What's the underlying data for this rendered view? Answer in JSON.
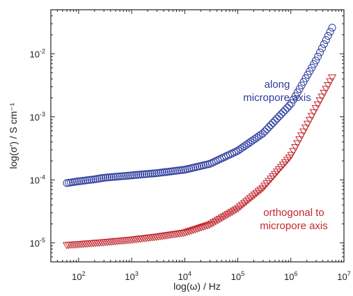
{
  "chart_data": {
    "type": "scatter",
    "title": "",
    "xlabel": "log(ω) / Hz",
    "ylabel": "log(σ') / S cm⁻¹",
    "x_scale": "log",
    "y_scale": "log",
    "xlim": [
      30,
      10000000
    ],
    "ylim": [
      5e-06,
      0.05
    ],
    "grid": false,
    "x_ticks": [
      {
        "value": 100,
        "base": "10",
        "exp": "2"
      },
      {
        "value": 1000,
        "base": "10",
        "exp": "3"
      },
      {
        "value": 10000,
        "base": "10",
        "exp": "4"
      },
      {
        "value": 100000,
        "base": "10",
        "exp": "5"
      },
      {
        "value": 1000000,
        "base": "10",
        "exp": "6"
      },
      {
        "value": 10000000,
        "base": "10",
        "exp": "7"
      }
    ],
    "y_ticks": [
      {
        "value": 1e-05,
        "base": "10",
        "exp": "-5"
      },
      {
        "value": 0.0001,
        "base": "10",
        "exp": "-4"
      },
      {
        "value": 0.001,
        "base": "10",
        "exp": "-3"
      },
      {
        "value": 0.01,
        "base": "10",
        "exp": "-2"
      }
    ],
    "series": [
      {
        "name": "along micropore axis",
        "color": "#2b3a9c",
        "marker": "circle",
        "points": [
          [
            60,
            8.9e-05
          ],
          [
            100,
            9.5e-05
          ],
          [
            200,
            0.000102
          ],
          [
            300,
            0.000108
          ],
          [
            1000,
            0.000118
          ],
          [
            3000,
            0.000128
          ],
          [
            10000,
            0.000145
          ],
          [
            30000,
            0.00018
          ],
          [
            100000,
            0.00029
          ],
          [
            300000,
            0.00055
          ],
          [
            1000000,
            0.0016
          ],
          [
            3000000,
            0.008
          ],
          [
            6000000,
            0.026
          ]
        ]
      },
      {
        "name": "orthogonal to micropore axis",
        "color": "#c0282f",
        "marker": "triangle-down",
        "points": [
          [
            60,
            9.2e-06
          ],
          [
            100,
            9.5e-06
          ],
          [
            300,
            1.02e-05
          ],
          [
            1000,
            1.12e-05
          ],
          [
            3000,
            1.25e-05
          ],
          [
            10000,
            1.45e-05
          ],
          [
            30000,
            1.95e-05
          ],
          [
            100000,
            3.5e-05
          ],
          [
            300000,
            7.5e-05
          ],
          [
            1000000,
            0.00024
          ],
          [
            3000000,
            0.0014
          ],
          [
            6000000,
            0.0042
          ]
        ]
      }
    ],
    "annotations": [
      {
        "lines": [
          "along",
          "micropore axis"
        ],
        "color": "#2b3a9c"
      },
      {
        "lines": [
          "orthogonal to",
          "micropore axis"
        ],
        "color": "#c0282f"
      }
    ]
  }
}
